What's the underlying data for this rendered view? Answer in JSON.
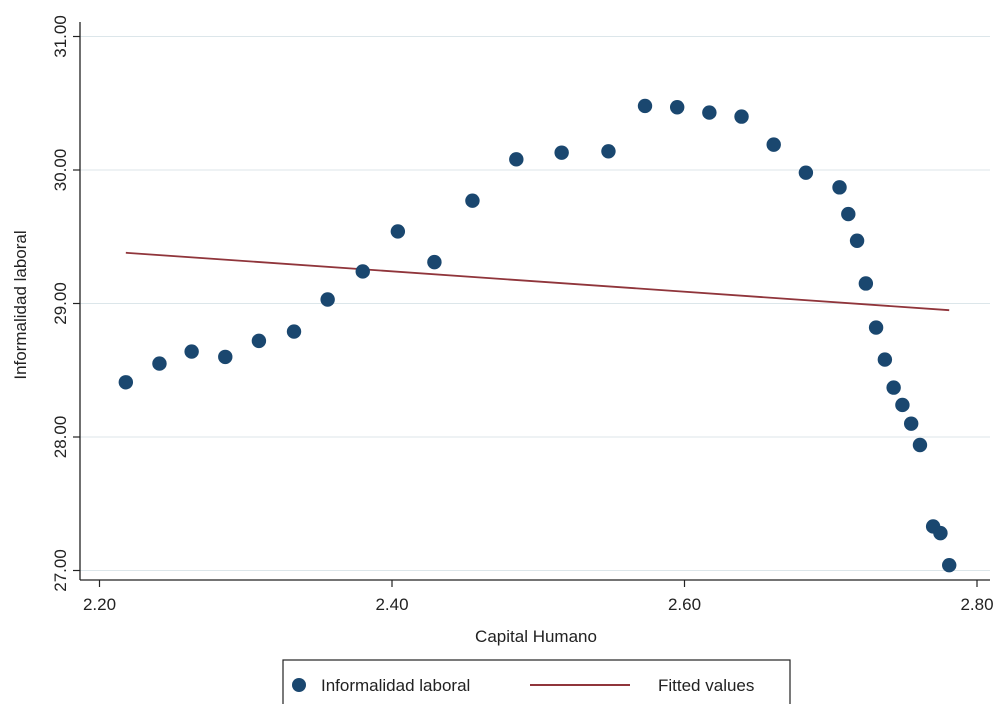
{
  "chart_data": {
    "type": "scatter",
    "xlabel": "Capital Humano",
    "ylabel": "Informalidad laboral",
    "xlim": [
      2.2,
      2.8
    ],
    "ylim": [
      27.0,
      31.0
    ],
    "xticks": [
      "2.20",
      "2.40",
      "2.60",
      "2.80"
    ],
    "yticks": [
      "27.00",
      "28.00",
      "29.00",
      "30.00",
      "31.00"
    ],
    "grid": "horizontal",
    "legend_position": "bottom",
    "series": [
      {
        "name": "Informalidad laboral",
        "kind": "scatter",
        "color": "#1a476f",
        "x": [
          2.218,
          2.241,
          2.263,
          2.286,
          2.309,
          2.333,
          2.356,
          2.38,
          2.404,
          2.429,
          2.455,
          2.485,
          2.516,
          2.548,
          2.573,
          2.595,
          2.617,
          2.639,
          2.661,
          2.683,
          2.706,
          2.712,
          2.718,
          2.724,
          2.731,
          2.737,
          2.743,
          2.749,
          2.755,
          2.761,
          2.77,
          2.775,
          2.781
        ],
        "y": [
          28.41,
          28.55,
          28.64,
          28.6,
          28.72,
          28.79,
          29.03,
          29.24,
          29.54,
          29.31,
          29.77,
          30.08,
          30.13,
          30.14,
          30.48,
          30.47,
          30.43,
          30.4,
          30.19,
          29.98,
          29.87,
          29.67,
          29.47,
          29.15,
          28.82,
          28.58,
          28.37,
          28.24,
          28.1,
          27.94,
          27.33,
          27.28,
          27.04
        ]
      },
      {
        "name": "Fitted values",
        "kind": "line",
        "color": "#90353b",
        "x": [
          2.218,
          2.781
        ],
        "y": [
          29.38,
          28.95
        ]
      }
    ]
  }
}
